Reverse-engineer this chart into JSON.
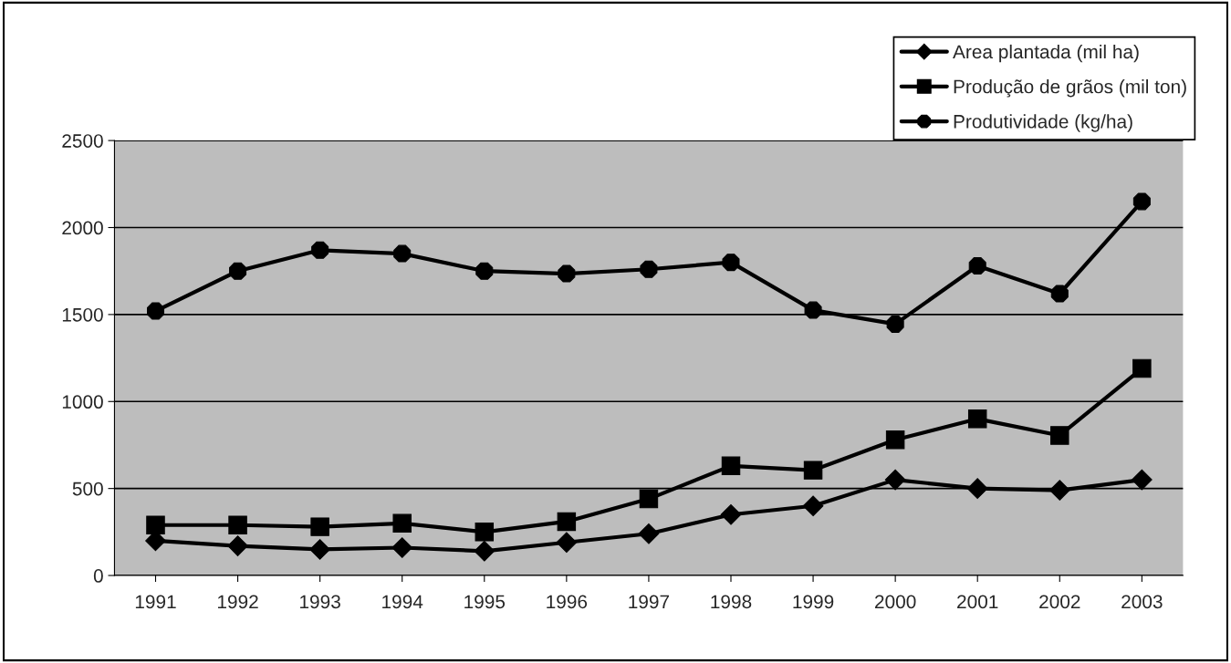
{
  "chart_data": {
    "type": "line",
    "categories": [
      "1991",
      "1992",
      "1993",
      "1994",
      "1995",
      "1996",
      "1997",
      "1998",
      "1999",
      "2000",
      "2001",
      "2002",
      "2003"
    ],
    "series": [
      {
        "name": "Area plantada (mil ha)",
        "color": "#000000",
        "marker": "diamond",
        "values": [
          200,
          170,
          150,
          160,
          140,
          190,
          240,
          350,
          400,
          550,
          500,
          490,
          550
        ]
      },
      {
        "name": "Produção de grãos (mil ton)",
        "color": "#000000",
        "marker": "square",
        "values": [
          290,
          290,
          280,
          300,
          250,
          310,
          440,
          630,
          605,
          780,
          900,
          805,
          1190
        ]
      },
      {
        "name": "Produtividade (kg/ha)",
        "color": "#000000",
        "marker": "circle",
        "values": [
          1520,
          1750,
          1870,
          1850,
          1750,
          1735,
          1760,
          1800,
          1525,
          1445,
          1780,
          1620,
          2150
        ]
      }
    ],
    "ylim": [
      0,
      2500
    ],
    "yticks": [
      0,
      500,
      1000,
      1500,
      2000,
      2500
    ],
    "grid": "y",
    "legend": "top right",
    "line_style": "solid"
  }
}
